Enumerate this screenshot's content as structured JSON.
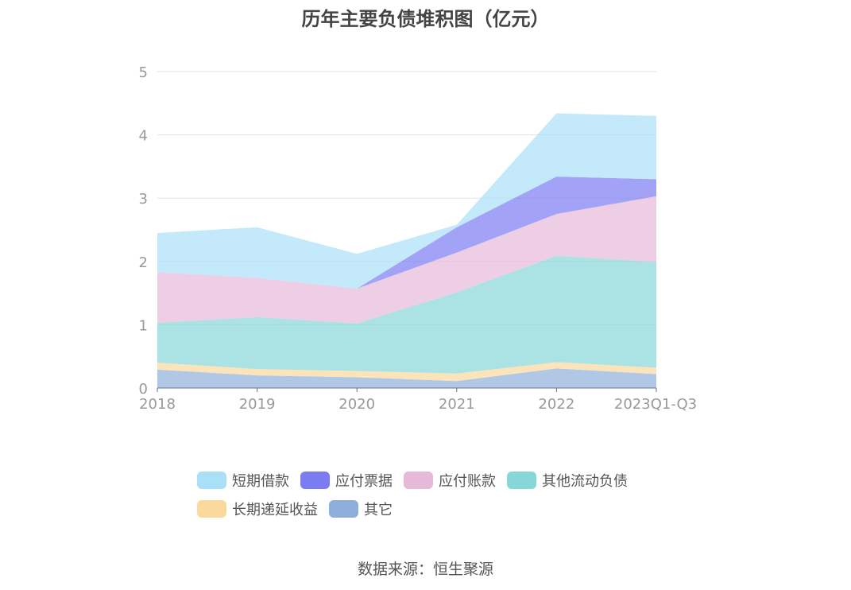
{
  "title": "历年主要负债堆积图（亿元）",
  "source": "数据来源：恒生聚源",
  "chart_data": {
    "type": "area",
    "stacked": true,
    "x": [
      "2018",
      "2019",
      "2020",
      "2021",
      "2022",
      "2023Q1-Q3"
    ],
    "ylim": [
      0,
      5
    ],
    "yticks": [
      "0",
      "1",
      "2",
      "3",
      "4",
      "5"
    ],
    "grid": true,
    "legend_position": "bottom",
    "series": [
      {
        "name": "其它",
        "color": "#8eafdc",
        "values": [
          0.29,
          0.2,
          0.17,
          0.11,
          0.31,
          0.22
        ]
      },
      {
        "name": "长期递延收益",
        "color": "#fbd89c",
        "values": [
          0.11,
          0.1,
          0.1,
          0.12,
          0.1,
          0.1
        ]
      },
      {
        "name": "其他流动负债",
        "color": "#87d6d8",
        "values": [
          0.63,
          0.82,
          0.75,
          1.28,
          1.68,
          1.67
        ]
      },
      {
        "name": "应付账款",
        "color": "#e7b9d8",
        "values": [
          0.8,
          0.62,
          0.55,
          0.63,
          0.66,
          1.04
        ]
      },
      {
        "name": "应付票据",
        "color": "#7b7bf2",
        "values": [
          0,
          0,
          0,
          0.4,
          0.59,
          0.27
        ]
      },
      {
        "name": "短期借款",
        "color": "#a9e0f8",
        "values": [
          0.62,
          0.8,
          0.55,
          0.04,
          1.0,
          1.0
        ]
      }
    ]
  }
}
